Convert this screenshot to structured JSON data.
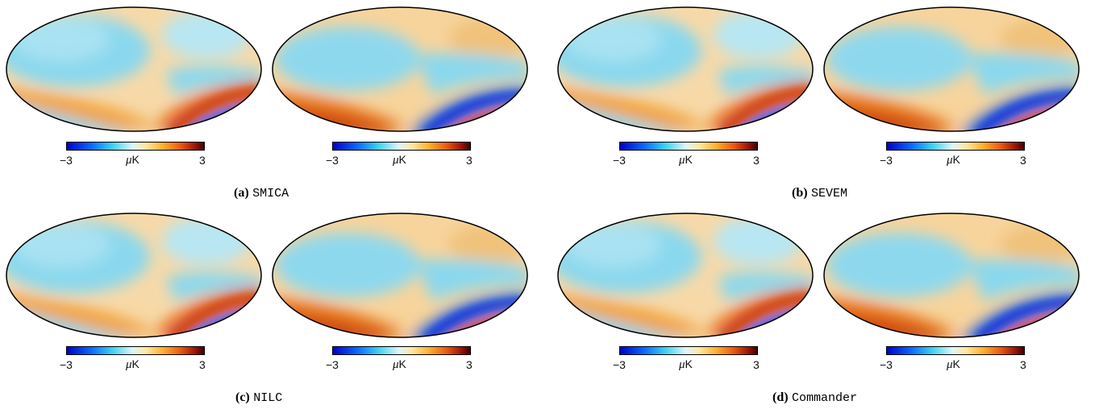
{
  "panels": [
    {
      "label": "(a)",
      "name": "SMICA"
    },
    {
      "label": "(b)",
      "name": "SEVEM"
    },
    {
      "label": "(c)",
      "name": "NILC"
    },
    {
      "label": "(d)",
      "name": "Commander"
    }
  ],
  "colorbar": {
    "min": "−3",
    "max": "3",
    "unit_mu": "μ",
    "unit_k": "K"
  },
  "colormap_colors": [
    "#0000c8",
    "#0a6cff",
    "#3fd0f0",
    "#dff6f8",
    "#ffe6a0",
    "#ffb030",
    "#e85a10",
    "#a01808",
    "#400000"
  ]
}
